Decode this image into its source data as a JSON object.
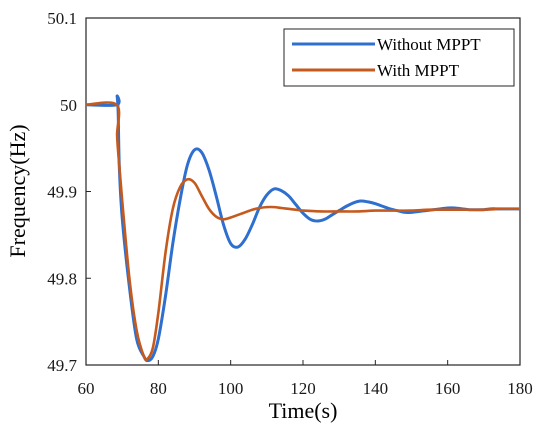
{
  "chart_data": {
    "type": "line",
    "title": "",
    "xlabel": "Time(s)",
    "ylabel": "Frequency(Hz)",
    "xlim": [
      60,
      180
    ],
    "ylim": [
      49.7,
      50.1
    ],
    "xticks": [
      "60",
      "80",
      "100",
      "120",
      "140",
      "160",
      "180"
    ],
    "yticks": [
      "49.7",
      "49.8",
      "49.9",
      "50",
      "50.1"
    ],
    "grid": false,
    "legend_position": "top-right",
    "series": [
      {
        "name": "Without MPPT",
        "color": "#2f6fce",
        "x": [
          60,
          68.5,
          68.6,
          68.9,
          69.2,
          70,
          72,
          74,
          76,
          77,
          78.5,
          80,
          82,
          84,
          86,
          88,
          90,
          92,
          94,
          96,
          98,
          100,
          102,
          104,
          106,
          108,
          110,
          112,
          114,
          116,
          118,
          120,
          122,
          124,
          126,
          128,
          130,
          132,
          134,
          136,
          138,
          140,
          142,
          144,
          146,
          148,
          150,
          152,
          154,
          156,
          158,
          160,
          162,
          164,
          166,
          168,
          170,
          172,
          174,
          176,
          178,
          180
        ],
        "y": [
          50.0,
          50.0,
          50.01,
          49.99,
          49.93,
          49.87,
          49.79,
          49.73,
          49.71,
          49.705,
          49.71,
          49.73,
          49.78,
          49.84,
          49.89,
          49.93,
          49.948,
          49.945,
          49.925,
          49.895,
          49.862,
          49.84,
          49.836,
          49.845,
          49.862,
          49.882,
          49.896,
          49.903,
          49.901,
          49.895,
          49.885,
          49.875,
          49.868,
          49.866,
          49.868,
          49.873,
          49.878,
          49.883,
          49.887,
          49.889,
          49.888,
          49.886,
          49.883,
          49.88,
          49.878,
          49.876,
          49.876,
          49.877,
          49.878,
          49.879,
          49.88,
          49.881,
          49.881,
          49.88,
          49.879,
          49.879,
          49.879,
          49.88,
          49.88,
          49.88,
          49.88,
          49.88
        ]
      },
      {
        "name": "With MPPT",
        "color": "#c55a1e",
        "x": [
          60,
          68.5,
          68.6,
          69.0,
          70,
          72,
          74,
          76,
          77,
          78.5,
          80,
          82,
          84,
          86,
          88,
          90,
          92,
          94,
          96,
          98,
          100,
          102,
          104,
          106,
          108,
          110,
          112,
          114,
          116,
          118,
          120,
          125,
          130,
          135,
          140,
          145,
          150,
          155,
          160,
          165,
          170,
          175,
          180
        ],
        "y": [
          50.0,
          50.0,
          49.965,
          49.94,
          49.89,
          49.8,
          49.74,
          49.71,
          49.707,
          49.72,
          49.76,
          49.83,
          49.88,
          49.905,
          49.914,
          49.91,
          49.895,
          49.88,
          49.871,
          49.868,
          49.87,
          49.873,
          49.876,
          49.879,
          49.881,
          49.882,
          49.882,
          49.881,
          49.88,
          49.879,
          49.878,
          49.877,
          49.877,
          49.877,
          49.878,
          49.878,
          49.878,
          49.879,
          49.879,
          49.879,
          49.879,
          49.88,
          49.88
        ]
      }
    ]
  }
}
